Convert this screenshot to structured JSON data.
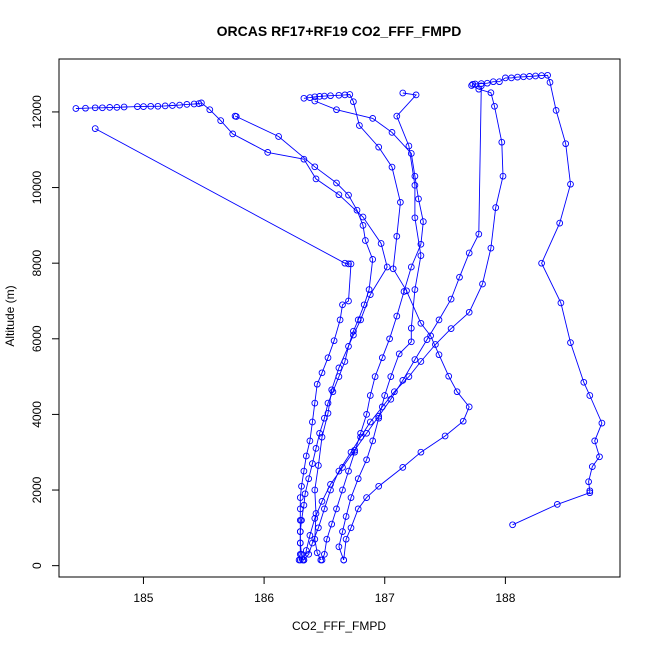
{
  "chart_data": {
    "type": "line",
    "title": "ORCAS RF17+RF19 CO2_FFF_FMPD",
    "xlabel": "CO2_FFF_FMPD",
    "ylabel": "Altitude (m)",
    "xlim": [
      184.3,
      188.95
    ],
    "ylim": [
      -300,
      13400
    ],
    "xticks": [
      "185",
      "186",
      "187",
      "188"
    ],
    "yticks": [
      "0",
      "2000",
      "4000",
      "6000",
      "8000",
      "10000",
      "12000"
    ],
    "grid": false,
    "series_color": "#0000ff",
    "marker": "open-circle",
    "series": [
      {
        "values": [
          [
            184.44,
            12090
          ],
          [
            184.52,
            12100
          ],
          [
            184.6,
            12110
          ],
          [
            184.66,
            12110
          ],
          [
            184.72,
            12120
          ],
          [
            184.78,
            12120
          ],
          [
            184.84,
            12130
          ],
          [
            184.95,
            12140
          ],
          [
            185.0,
            12140
          ],
          [
            185.06,
            12150
          ],
          [
            185.12,
            12150
          ],
          [
            185.18,
            12160
          ],
          [
            185.24,
            12170
          ],
          [
            185.3,
            12180
          ],
          [
            185.36,
            12200
          ],
          [
            185.42,
            12210
          ],
          [
            185.46,
            12220
          ],
          [
            185.48,
            12240
          ],
          [
            185.55,
            12060
          ],
          [
            185.64,
            11770
          ],
          [
            185.74,
            11420
          ],
          [
            186.03,
            10930
          ],
          [
            186.33,
            10750
          ],
          [
            186.43,
            10230
          ],
          [
            186.62,
            9810
          ],
          [
            186.82,
            9220
          ],
          [
            186.97,
            8520
          ],
          [
            187.02,
            7900
          ],
          [
            186.88,
            7170
          ],
          [
            186.8,
            6500
          ],
          [
            186.74,
            6100
          ],
          [
            186.62,
            5230
          ],
          [
            186.56,
            4650
          ],
          [
            186.53,
            4030
          ],
          [
            186.48,
            3400
          ],
          [
            186.45,
            2650
          ],
          [
            186.42,
            2000
          ],
          [
            186.43,
            1380
          ],
          [
            186.42,
            700
          ],
          [
            186.44,
            340
          ],
          [
            186.47,
            150
          ]
        ]
      },
      {
        "values": [
          [
            184.6,
            11560
          ],
          [
            186.67,
            8000
          ],
          [
            186.7,
            7980
          ],
          [
            186.72,
            7980
          ],
          [
            186.7,
            7000
          ],
          [
            186.65,
            6900
          ],
          [
            186.63,
            6500
          ],
          [
            186.58,
            5950
          ],
          [
            186.53,
            5500
          ],
          [
            186.48,
            5100
          ],
          [
            186.44,
            4800
          ],
          [
            186.42,
            4300
          ],
          [
            186.4,
            3800
          ],
          [
            186.38,
            3300
          ],
          [
            186.35,
            2900
          ],
          [
            186.33,
            2500
          ],
          [
            186.31,
            2100
          ],
          [
            186.3,
            1800
          ],
          [
            186.3,
            1500
          ],
          [
            186.3,
            1200
          ],
          [
            186.3,
            900
          ],
          [
            186.3,
            600
          ],
          [
            186.3,
            300
          ],
          [
            186.29,
            150
          ],
          [
            186.3,
            150
          ]
        ]
      },
      {
        "values": [
          [
            185.76,
            11890
          ],
          [
            185.77,
            11880
          ],
          [
            186.12,
            11350
          ],
          [
            186.42,
            10550
          ],
          [
            186.6,
            10120
          ],
          [
            186.7,
            9800
          ],
          [
            186.77,
            9400
          ],
          [
            186.82,
            9000
          ],
          [
            186.84,
            8600
          ],
          [
            186.9,
            8100
          ],
          [
            186.87,
            7300
          ],
          [
            186.83,
            6900
          ],
          [
            186.78,
            6500
          ],
          [
            186.74,
            6200
          ],
          [
            186.7,
            5800
          ],
          [
            186.67,
            5400
          ],
          [
            186.62,
            5000
          ],
          [
            186.57,
            4600
          ],
          [
            186.53,
            4300
          ],
          [
            186.5,
            3900
          ],
          [
            186.46,
            3500
          ],
          [
            186.43,
            3100
          ],
          [
            186.4,
            2700
          ],
          [
            186.37,
            2300
          ],
          [
            186.34,
            1900
          ],
          [
            186.33,
            1600
          ],
          [
            186.31,
            1200
          ],
          [
            186.3,
            900
          ],
          [
            186.3,
            600
          ],
          [
            186.31,
            300
          ],
          [
            186.32,
            150
          ]
        ]
      },
      {
        "values": [
          [
            186.33,
            12360
          ],
          [
            186.38,
            12380
          ],
          [
            186.42,
            12400
          ],
          [
            186.46,
            12410
          ],
          [
            186.5,
            12420
          ],
          [
            186.55,
            12430
          ],
          [
            186.62,
            12440
          ],
          [
            186.67,
            12450
          ],
          [
            186.71,
            12460
          ],
          [
            186.74,
            12270
          ],
          [
            186.79,
            11640
          ],
          [
            186.95,
            11070
          ],
          [
            187.06,
            10540
          ],
          [
            187.13,
            9610
          ],
          [
            187.1,
            8710
          ],
          [
            187.07,
            7850
          ],
          [
            187.18,
            7270
          ],
          [
            187.3,
            6410
          ],
          [
            187.38,
            6080
          ],
          [
            187.45,
            5580
          ],
          [
            187.53,
            5010
          ],
          [
            187.6,
            4600
          ],
          [
            187.7,
            4200
          ],
          [
            187.65,
            3820
          ],
          [
            187.5,
            3430
          ],
          [
            187.3,
            3000
          ],
          [
            187.15,
            2600
          ],
          [
            186.95,
            2100
          ],
          [
            186.85,
            1800
          ],
          [
            186.78,
            1500
          ],
          [
            186.72,
            1000
          ],
          [
            186.68,
            700
          ],
          [
            186.66,
            150
          ]
        ]
      },
      {
        "values": [
          [
            186.42,
            12290
          ],
          [
            186.6,
            12060
          ],
          [
            186.9,
            11830
          ],
          [
            187.06,
            11460
          ],
          [
            187.22,
            10900
          ],
          [
            187.25,
            10300
          ],
          [
            187.28,
            9700
          ],
          [
            187.32,
            9100
          ],
          [
            187.3,
            8500
          ],
          [
            187.22,
            7900
          ],
          [
            187.16,
            7250
          ],
          [
            187.1,
            6600
          ],
          [
            187.04,
            6000
          ],
          [
            186.98,
            5500
          ],
          [
            186.92,
            5000
          ],
          [
            186.88,
            4500
          ],
          [
            186.85,
            4000
          ],
          [
            186.8,
            3500
          ],
          [
            186.75,
            3000
          ],
          [
            186.7,
            2500
          ],
          [
            186.65,
            2000
          ],
          [
            186.6,
            1500
          ],
          [
            186.56,
            1100
          ],
          [
            186.52,
            700
          ],
          [
            186.5,
            300
          ],
          [
            186.48,
            150
          ]
        ]
      },
      {
        "values": [
          [
            187.15,
            12500
          ],
          [
            187.26,
            12450
          ],
          [
            187.1,
            11890
          ],
          [
            187.2,
            11100
          ],
          [
            187.25,
            10060
          ],
          [
            187.25,
            9200
          ],
          [
            187.3,
            8200
          ],
          [
            187.25,
            7300
          ],
          [
            187.22,
            6280
          ],
          [
            187.22,
            5920
          ],
          [
            187.12,
            5600
          ],
          [
            187.05,
            5000
          ],
          [
            187.0,
            4500
          ],
          [
            186.95,
            3900
          ],
          [
            186.9,
            3300
          ],
          [
            186.85,
            2800
          ],
          [
            186.78,
            2300
          ],
          [
            186.72,
            1800
          ],
          [
            186.68,
            1300
          ],
          [
            186.65,
            900
          ],
          [
            186.62,
            500
          ],
          [
            186.66,
            150
          ]
        ]
      },
      {
        "values": [
          [
            187.73,
            12730
          ],
          [
            187.75,
            12740
          ],
          [
            187.8,
            12750
          ],
          [
            187.85,
            12760
          ],
          [
            187.9,
            12800
          ],
          [
            187.95,
            12800
          ],
          [
            188.0,
            12900
          ],
          [
            188.05,
            12900
          ],
          [
            188.1,
            12920
          ],
          [
            188.15,
            12930
          ],
          [
            188.2,
            12940
          ],
          [
            188.25,
            12950
          ],
          [
            188.3,
            12960
          ],
          [
            188.35,
            12970
          ],
          [
            188.37,
            12780
          ],
          [
            188.42,
            12040
          ],
          [
            188.5,
            11160
          ],
          [
            188.54,
            10090
          ],
          [
            188.45,
            9060
          ],
          [
            188.3,
            8000
          ],
          [
            188.46,
            6950
          ],
          [
            188.54,
            5900
          ],
          [
            188.65,
            4850
          ],
          [
            188.7,
            4500
          ],
          [
            188.8,
            3770
          ],
          [
            188.74,
            3300
          ],
          [
            188.78,
            2880
          ],
          [
            188.72,
            2620
          ],
          [
            188.69,
            2220
          ],
          [
            188.7,
            1980
          ],
          [
            188.7,
            1930
          ],
          [
            188.43,
            1620
          ],
          [
            188.06,
            1080
          ]
        ]
      },
      {
        "values": [
          [
            187.72,
            12700
          ],
          [
            187.78,
            12600
          ],
          [
            187.88,
            12510
          ],
          [
            187.91,
            12150
          ],
          [
            187.97,
            11200
          ],
          [
            187.98,
            10300
          ],
          [
            187.92,
            9470
          ],
          [
            187.88,
            8400
          ],
          [
            187.81,
            7450
          ],
          [
            187.7,
            6700
          ],
          [
            187.55,
            6270
          ],
          [
            187.42,
            5850
          ],
          [
            187.3,
            5400
          ],
          [
            187.2,
            5000
          ],
          [
            187.08,
            4600
          ],
          [
            186.98,
            4200
          ],
          [
            186.88,
            3800
          ],
          [
            186.8,
            3400
          ],
          [
            186.72,
            3000
          ],
          [
            186.62,
            2500
          ],
          [
            186.55,
            2000
          ],
          [
            186.5,
            1500
          ],
          [
            186.45,
            1000
          ],
          [
            186.4,
            600
          ],
          [
            186.37,
            300
          ],
          [
            186.33,
            150
          ]
        ]
      },
      {
        "values": [
          [
            187.8,
            12690
          ],
          [
            187.78,
            8770
          ],
          [
            187.7,
            8270
          ],
          [
            187.62,
            7630
          ],
          [
            187.55,
            7050
          ],
          [
            187.45,
            6500
          ],
          [
            187.35,
            5980
          ],
          [
            187.25,
            5450
          ],
          [
            187.15,
            4900
          ],
          [
            187.05,
            4400
          ],
          [
            186.95,
            3950
          ],
          [
            186.85,
            3500
          ],
          [
            186.75,
            3050
          ],
          [
            186.65,
            2600
          ],
          [
            186.55,
            2150
          ],
          [
            186.48,
            1700
          ],
          [
            186.42,
            1250
          ],
          [
            186.38,
            800
          ],
          [
            186.35,
            400
          ],
          [
            186.33,
            150
          ]
        ]
      }
    ]
  }
}
